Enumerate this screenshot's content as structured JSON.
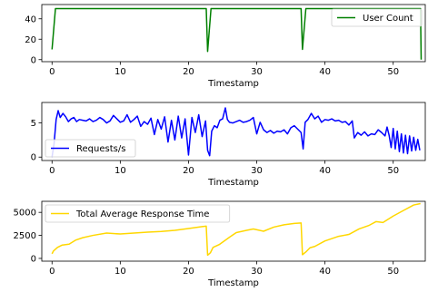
{
  "chart_data": [
    {
      "type": "line",
      "xlabel": "Timestamp",
      "xlim": [
        -1.5,
        54.7
      ],
      "ylim": [
        -2,
        54
      ],
      "xticks": [
        0,
        10,
        20,
        30,
        40,
        50
      ],
      "yticks": [
        0,
        20,
        40
      ],
      "legend_position": "upper-right",
      "series": [
        {
          "name": "User Count",
          "color": "#008000",
          "points": [
            [
              0,
              10
            ],
            [
              0.5,
              50
            ],
            [
              22.6,
              50
            ],
            [
              22.8,
              8
            ],
            [
              23.3,
              50
            ],
            [
              36.5,
              50
            ],
            [
              36.7,
              10
            ],
            [
              37.2,
              50
            ],
            [
              54,
              50
            ],
            [
              54.1,
              0
            ]
          ]
        }
      ]
    },
    {
      "type": "line",
      "xlabel": "Timestamp",
      "xlim": [
        -1.5,
        54.7
      ],
      "ylim": [
        -0.5,
        8
      ],
      "xticks": [
        0,
        10,
        20,
        30,
        40,
        50
      ],
      "yticks": [
        0,
        5
      ],
      "legend_position": "lower-left",
      "series": [
        {
          "name": "Requests/s",
          "color": "#0000ff",
          "points": [
            [
              0,
              0
            ],
            [
              0.3,
              2
            ],
            [
              0.6,
              5.5
            ],
            [
              0.9,
              6.8
            ],
            [
              1.2,
              5.8
            ],
            [
              1.6,
              6.4
            ],
            [
              2,
              5.9
            ],
            [
              2.4,
              5.2
            ],
            [
              2.8,
              5.6
            ],
            [
              3.2,
              5.8
            ],
            [
              3.6,
              5.2
            ],
            [
              4,
              5.5
            ],
            [
              4.5,
              5.4
            ],
            [
              5,
              5.3
            ],
            [
              5.5,
              5.6
            ],
            [
              6,
              5.2
            ],
            [
              6.5,
              5.4
            ],
            [
              7,
              5.8
            ],
            [
              7.5,
              5.5
            ],
            [
              8,
              5
            ],
            [
              8.5,
              5.3
            ],
            [
              9,
              6.1
            ],
            [
              9.5,
              5.6
            ],
            [
              10,
              5.1
            ],
            [
              10.5,
              5.3
            ],
            [
              11,
              6.2
            ],
            [
              11.5,
              5.1
            ],
            [
              12,
              5.5
            ],
            [
              12.5,
              6
            ],
            [
              13,
              4.5
            ],
            [
              13.5,
              5.2
            ],
            [
              14,
              4.8
            ],
            [
              14.5,
              5.7
            ],
            [
              15,
              3.3
            ],
            [
              15.5,
              5.5
            ],
            [
              16,
              4.1
            ],
            [
              16.5,
              5.9
            ],
            [
              17,
              2.2
            ],
            [
              17.5,
              5.4
            ],
            [
              18,
              2.5
            ],
            [
              18.5,
              6
            ],
            [
              19,
              2.8
            ],
            [
              19.5,
              5.6
            ],
            [
              20,
              0.3
            ],
            [
              20.5,
              5.8
            ],
            [
              21,
              3.6
            ],
            [
              21.5,
              6.2
            ],
            [
              22,
              3
            ],
            [
              22.5,
              5.3
            ],
            [
              22.8,
              1
            ],
            [
              23.1,
              0.2
            ],
            [
              23.4,
              3.8
            ],
            [
              23.8,
              4.6
            ],
            [
              24.2,
              4.3
            ],
            [
              24.6,
              5.4
            ],
            [
              25,
              5.6
            ],
            [
              25.4,
              7.2
            ],
            [
              25.7,
              5.5
            ],
            [
              26,
              5.1
            ],
            [
              26.5,
              5
            ],
            [
              27,
              5.2
            ],
            [
              27.5,
              5.4
            ],
            [
              28,
              5.1
            ],
            [
              28.5,
              5.2
            ],
            [
              29,
              5.4
            ],
            [
              29.5,
              5.8
            ],
            [
              30,
              3.4
            ],
            [
              30.5,
              5.1
            ],
            [
              31,
              4
            ],
            [
              31.5,
              3.6
            ],
            [
              32,
              3.9
            ],
            [
              32.5,
              3.5
            ],
            [
              33,
              3.8
            ],
            [
              33.5,
              3.7
            ],
            [
              34,
              4
            ],
            [
              34.5,
              3.4
            ],
            [
              35,
              4.3
            ],
            [
              35.5,
              4.6
            ],
            [
              36,
              4.1
            ],
            [
              36.5,
              3.6
            ],
            [
              36.8,
              1.2
            ],
            [
              37.1,
              5.1
            ],
            [
              37.5,
              5.5
            ],
            [
              38,
              6.4
            ],
            [
              38.5,
              5.6
            ],
            [
              39,
              6
            ],
            [
              39.5,
              5.1
            ],
            [
              40,
              5.5
            ],
            [
              40.5,
              5.4
            ],
            [
              41,
              5.6
            ],
            [
              41.5,
              5.3
            ],
            [
              42,
              5.4
            ],
            [
              42.5,
              5.1
            ],
            [
              43,
              5.2
            ],
            [
              43.5,
              4.7
            ],
            [
              44,
              5.3
            ],
            [
              44.3,
              2.8
            ],
            [
              44.8,
              3.6
            ],
            [
              45.3,
              3.2
            ],
            [
              45.8,
              3.7
            ],
            [
              46.3,
              3.1
            ],
            [
              46.8,
              3.4
            ],
            [
              47.3,
              3.3
            ],
            [
              47.8,
              4
            ],
            [
              48.3,
              3.6
            ],
            [
              48.8,
              3.1
            ],
            [
              49.1,
              4.4
            ],
            [
              49.4,
              3.2
            ],
            [
              49.7,
              1.4
            ],
            [
              50,
              4.2
            ],
            [
              50.3,
              1.2
            ],
            [
              50.6,
              3.8
            ],
            [
              50.9,
              0.8
            ],
            [
              51.2,
              3.4
            ],
            [
              51.5,
              0.6
            ],
            [
              51.8,
              3.2
            ],
            [
              52.1,
              0.5
            ],
            [
              52.4,
              3.1
            ],
            [
              52.7,
              0.9
            ],
            [
              53,
              2.9
            ],
            [
              53.3,
              1
            ],
            [
              53.6,
              2.6
            ],
            [
              53.9,
              1
            ]
          ]
        }
      ]
    },
    {
      "type": "line",
      "xlabel": "Timestamp",
      "xlim": [
        -1.5,
        54.7
      ],
      "ylim": [
        -300,
        6200
      ],
      "xticks": [
        0,
        10,
        20,
        30,
        40,
        50
      ],
      "yticks": [
        0,
        2500,
        5000
      ],
      "legend_position": "upper-left",
      "series": [
        {
          "name": "Total Average Response Time",
          "color": "#ffd700",
          "points": [
            [
              0,
              500
            ],
            [
              0.2,
              800
            ],
            [
              0.8,
              1200
            ],
            [
              1.5,
              1450
            ],
            [
              2.5,
              1550
            ],
            [
              3.5,
              2000
            ],
            [
              4.5,
              2250
            ],
            [
              6,
              2500
            ],
            [
              8,
              2750
            ],
            [
              10,
              2650
            ],
            [
              12,
              2750
            ],
            [
              14,
              2850
            ],
            [
              16,
              2920
            ],
            [
              18,
              3050
            ],
            [
              20,
              3250
            ],
            [
              22,
              3450
            ],
            [
              22.6,
              3500
            ],
            [
              22.8,
              350
            ],
            [
              23.2,
              600
            ],
            [
              23.6,
              1200
            ],
            [
              24.5,
              1500
            ],
            [
              26,
              2300
            ],
            [
              27,
              2800
            ],
            [
              28.5,
              3050
            ],
            [
              29.5,
              3200
            ],
            [
              31,
              2950
            ],
            [
              32.5,
              3400
            ],
            [
              34,
              3650
            ],
            [
              35.5,
              3800
            ],
            [
              36.5,
              3850
            ],
            [
              36.7,
              400
            ],
            [
              37.2,
              700
            ],
            [
              37.8,
              1150
            ],
            [
              38.5,
              1300
            ],
            [
              40,
              1900
            ],
            [
              42,
              2400
            ],
            [
              43.5,
              2600
            ],
            [
              45,
              3200
            ],
            [
              46.5,
              3600
            ],
            [
              47.5,
              4000
            ],
            [
              48.5,
              3900
            ],
            [
              50,
              4600
            ],
            [
              51.5,
              5200
            ],
            [
              53,
              5800
            ],
            [
              54,
              5950
            ]
          ]
        }
      ]
    }
  ]
}
